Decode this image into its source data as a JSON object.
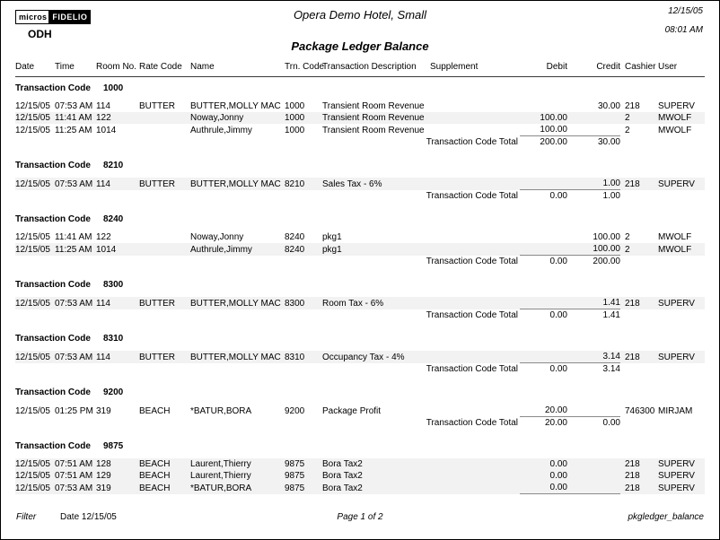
{
  "header": {
    "logo_micros": "micros",
    "logo_fidelio": "FIDELIO",
    "property_code": "ODH",
    "hotel_name": "Opera Demo Hotel, Small",
    "report_title": "Package Ledger Balance",
    "date": "12/15/05",
    "time": "08:01 AM"
  },
  "columns": [
    "Date",
    "Time",
    "Room No.",
    "Rate Code",
    "Name",
    "Trn. Code",
    "Transaction Description",
    "Supplement",
    "Debit",
    "Credit",
    "Cashier",
    "User"
  ],
  "group_label": "Transaction Code",
  "total_label": "Transaction Code Total",
  "groups": [
    {
      "code": "1000",
      "rows": [
        {
          "date": "12/15/05",
          "time": "07:53 AM",
          "room": "114",
          "rate": "BUTTER",
          "name": "BUTTER,MOLLY MAC",
          "trn": "1000",
          "desc": "Transient Room Revenue",
          "supp": "",
          "debit": "",
          "credit": "30.00",
          "cashier": "218",
          "user": "SUPERV",
          "shaded": false
        },
        {
          "date": "12/15/05",
          "time": "11:41 AM",
          "room": "122",
          "rate": "",
          "name": "Noway,Jonny",
          "trn": "1000",
          "desc": "Transient Room Revenue",
          "supp": "",
          "debit": "100.00",
          "credit": "",
          "cashier": "2",
          "user": "MWOLF",
          "shaded": true
        },
        {
          "date": "12/15/05",
          "time": "11:25 AM",
          "room": "1014",
          "rate": "",
          "name": "Authrule,Jimmy",
          "trn": "1000",
          "desc": "Transient Room Revenue",
          "supp": "",
          "debit": "100.00",
          "credit": "",
          "cashier": "2",
          "user": "MWOLF",
          "shaded": false
        }
      ],
      "total": {
        "label": "Transaction Code Total",
        "debit": "200.00",
        "credit": "30.00"
      }
    },
    {
      "code": "8210",
      "rows": [
        {
          "date": "12/15/05",
          "time": "07:53 AM",
          "room": "114",
          "rate": "BUTTER",
          "name": "BUTTER,MOLLY MAC",
          "trn": "8210",
          "desc": "Sales Tax - 6%",
          "supp": "",
          "debit": "",
          "credit": "1.00",
          "cashier": "218",
          "user": "SUPERV",
          "shaded": true
        }
      ],
      "total": {
        "label": "Transaction Code Total",
        "debit": "0.00",
        "credit": "1.00"
      }
    },
    {
      "code": "8240",
      "rows": [
        {
          "date": "12/15/05",
          "time": "11:41 AM",
          "room": "122",
          "rate": "",
          "name": "Noway,Jonny",
          "trn": "8240",
          "desc": "pkg1",
          "supp": "",
          "debit": "",
          "credit": "100.00",
          "cashier": "2",
          "user": "MWOLF",
          "shaded": false
        },
        {
          "date": "12/15/05",
          "time": "11:25 AM",
          "room": "1014",
          "rate": "",
          "name": "Authrule,Jimmy",
          "trn": "8240",
          "desc": "pkg1",
          "supp": "",
          "debit": "",
          "credit": "100.00",
          "cashier": "2",
          "user": "MWOLF",
          "shaded": true
        }
      ],
      "total": {
        "label": "Transaction Code Total",
        "debit": "0.00",
        "credit": "200.00"
      }
    },
    {
      "code": "8300",
      "rows": [
        {
          "date": "12/15/05",
          "time": "07:53 AM",
          "room": "114",
          "rate": "BUTTER",
          "name": "BUTTER,MOLLY MAC",
          "trn": "8300",
          "desc": "Room Tax - 6%",
          "supp": "",
          "debit": "",
          "credit": "1.41",
          "cashier": "218",
          "user": "SUPERV",
          "shaded": true
        }
      ],
      "total": {
        "label": "Transaction Code Total",
        "debit": "0.00",
        "credit": "1.41"
      }
    },
    {
      "code": "8310",
      "rows": [
        {
          "date": "12/15/05",
          "time": "07:53 AM",
          "room": "114",
          "rate": "BUTTER",
          "name": "BUTTER,MOLLY MAC",
          "trn": "8310",
          "desc": "Occupancy Tax - 4%",
          "supp": "",
          "debit": "",
          "credit": "3.14",
          "cashier": "218",
          "user": "SUPERV",
          "shaded": true
        }
      ],
      "total": {
        "label": "Transaction Code Total",
        "debit": "0.00",
        "credit": "3.14"
      }
    },
    {
      "code": "9200",
      "rows": [
        {
          "date": "12/15/05",
          "time": "01:25 PM",
          "room": "319",
          "rate": "BEACH",
          "name": "*BATUR,BORA",
          "trn": "9200",
          "desc": "Package Profit",
          "supp": "",
          "debit": "20.00",
          "credit": "",
          "cashier": "746300",
          "user": "MIRJAM",
          "shaded": false
        }
      ],
      "total": {
        "label": "Transaction Code Total",
        "debit": "20.00",
        "credit": "0.00"
      }
    },
    {
      "code": "9875",
      "rows": [
        {
          "date": "12/15/05",
          "time": "07:51 AM",
          "room": "128",
          "rate": "BEACH",
          "name": "Laurent,Thierry",
          "trn": "9875",
          "desc": "Bora Tax2",
          "supp": "",
          "debit": "0.00",
          "credit": "",
          "cashier": "218",
          "user": "SUPERV",
          "shaded": true
        },
        {
          "date": "12/15/05",
          "time": "07:51 AM",
          "room": "129",
          "rate": "BEACH",
          "name": "Laurent,Thierry",
          "trn": "9875",
          "desc": "Bora Tax2",
          "supp": "",
          "debit": "0.00",
          "credit": "",
          "cashier": "218",
          "user": "SUPERV",
          "shaded": true
        },
        {
          "date": "12/15/05",
          "time": "07:53 AM",
          "room": "319",
          "rate": "BEACH",
          "name": "*BATUR,BORA",
          "trn": "9875",
          "desc": "Bora Tax2",
          "supp": "",
          "debit": "0.00",
          "credit": "",
          "cashier": "218",
          "user": "SUPERV",
          "shaded": true
        }
      ],
      "total": {
        "label": "",
        "debit": "",
        "credit": ""
      }
    }
  ],
  "footer": {
    "filter_label": "Filter",
    "date_label": "Date 12/15/05",
    "page": "Page 1 of 2",
    "report_id": "pkgledger_balance"
  }
}
